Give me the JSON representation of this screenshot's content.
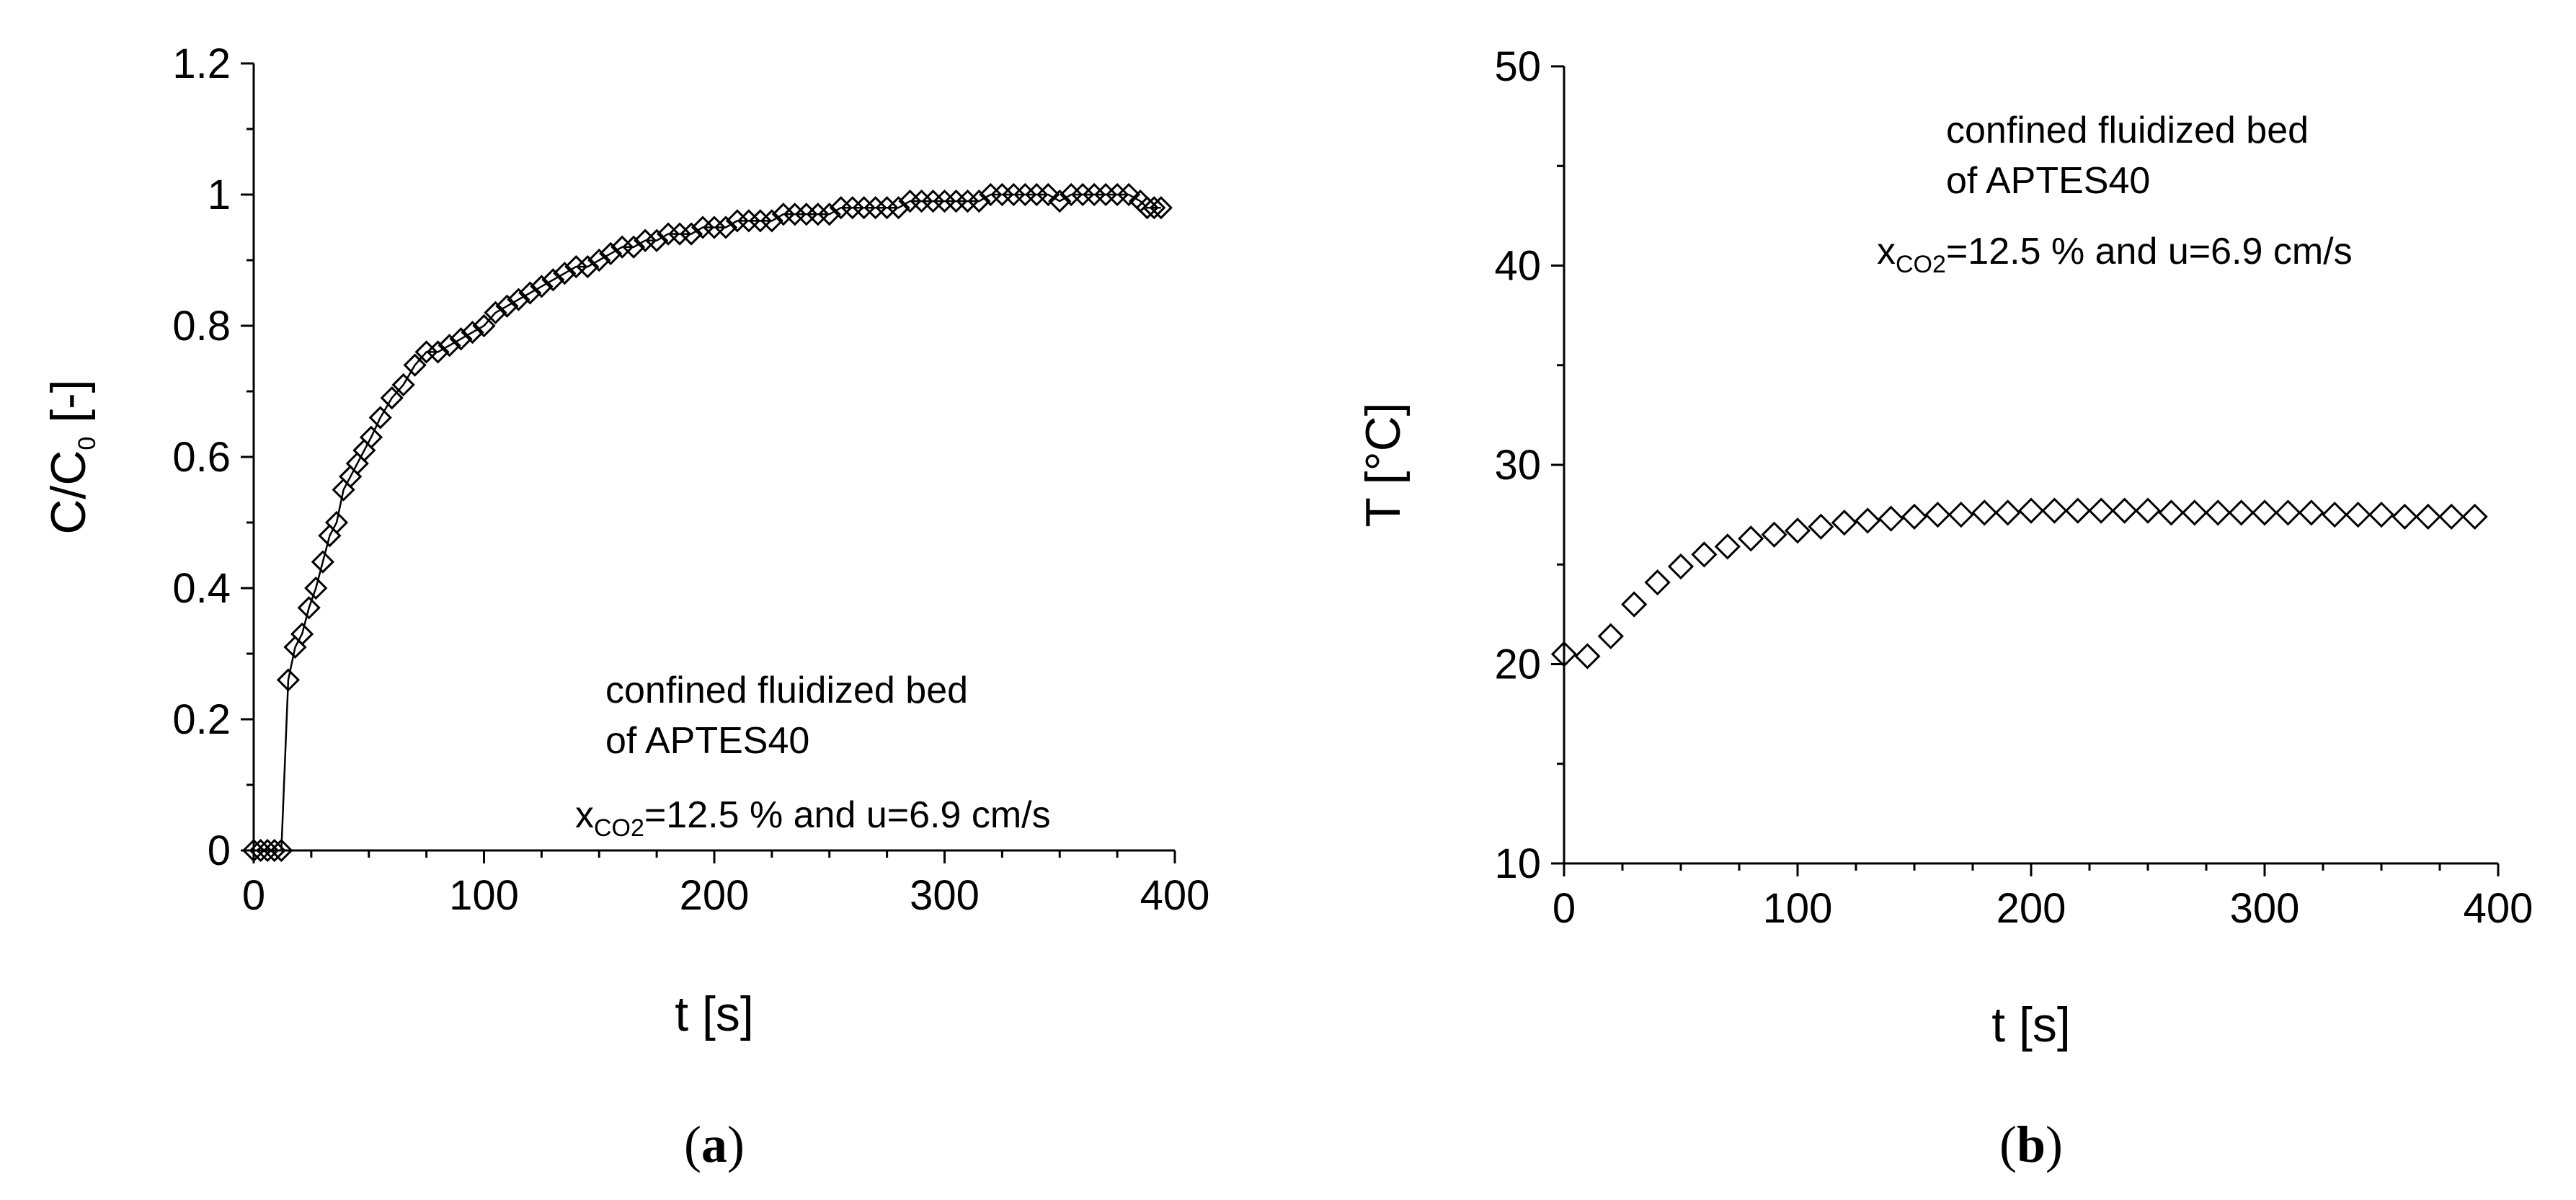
{
  "chart_data": [
    {
      "type": "scatter",
      "panel_label": {
        "open": "(",
        "letter": "a",
        "close": ")"
      },
      "xlabel": "t [s]",
      "ylabel": {
        "main": "C/C",
        "sub": "0",
        "unit": " [-]"
      },
      "xlim": [
        0,
        400
      ],
      "ylim": [
        0,
        1.2
      ],
      "xticks": [
        "0",
        "100",
        "200",
        "300",
        "400"
      ],
      "yticks": [
        "0",
        "0.2",
        "0.4",
        "0.6",
        "0.8",
        "1",
        "1.2"
      ],
      "annotation": {
        "line1": "confined fluidized bed",
        "line2": "of APTES40",
        "x_prefix": "x",
        "x_sub": "CO2",
        "x_rest": "=12.5 % and u=6.9 cm/s"
      },
      "marker": "diamond",
      "connected": true,
      "series": [
        {
          "name": "C/C0",
          "x": [
            0,
            3,
            6,
            9,
            12,
            15,
            18,
            21,
            24,
            27,
            30,
            33,
            36,
            39,
            42,
            45,
            48,
            51,
            55,
            60,
            65,
            70,
            75,
            80,
            85,
            90,
            95,
            100,
            105,
            110,
            115,
            120,
            125,
            130,
            135,
            140,
            145,
            150,
            155,
            160,
            165,
            170,
            175,
            180,
            185,
            190,
            195,
            200,
            205,
            210,
            215,
            220,
            225,
            230,
            235,
            240,
            245,
            250,
            255,
            260,
            265,
            270,
            275,
            280,
            285,
            290,
            295,
            300,
            305,
            310,
            315,
            320,
            325,
            330,
            335,
            340,
            345,
            350,
            355,
            360,
            365,
            370,
            375,
            380,
            385,
            388,
            391,
            394
          ],
          "y": [
            0,
            0,
            0,
            0,
            0,
            0.26,
            0.31,
            0.33,
            0.37,
            0.4,
            0.44,
            0.48,
            0.5,
            0.55,
            0.57,
            0.59,
            0.61,
            0.63,
            0.66,
            0.69,
            0.71,
            0.74,
            0.76,
            0.76,
            0.77,
            0.78,
            0.79,
            0.8,
            0.82,
            0.83,
            0.84,
            0.85,
            0.86,
            0.87,
            0.88,
            0.89,
            0.89,
            0.9,
            0.91,
            0.92,
            0.92,
            0.93,
            0.93,
            0.94,
            0.94,
            0.94,
            0.95,
            0.95,
            0.95,
            0.96,
            0.96,
            0.96,
            0.96,
            0.97,
            0.97,
            0.97,
            0.97,
            0.97,
            0.98,
            0.98,
            0.98,
            0.98,
            0.98,
            0.98,
            0.99,
            0.99,
            0.99,
            0.99,
            0.99,
            0.99,
            0.99,
            1.0,
            1.0,
            1.0,
            1.0,
            1.0,
            1.0,
            0.99,
            1.0,
            1.0,
            1.0,
            1.0,
            1.0,
            1.0,
            0.99,
            0.98,
            0.98,
            0.98
          ]
        }
      ]
    },
    {
      "type": "scatter",
      "panel_label": {
        "open": "(",
        "letter": "b",
        "close": ")"
      },
      "xlabel": "t [s]",
      "ylabel": {
        "main": "T [°C]"
      },
      "xlim": [
        0,
        400
      ],
      "ylim": [
        10,
        50
      ],
      "xticks": [
        "0",
        "100",
        "200",
        "300",
        "400"
      ],
      "yticks": [
        "10",
        "20",
        "30",
        "40",
        "50"
      ],
      "annotation": {
        "line1": "confined fluidized bed",
        "line2": "of APTES40",
        "x_prefix": "x",
        "x_sub": "CO2",
        "x_rest": "=12.5 % and u=6.9 cm/s"
      },
      "marker": "diamond",
      "connected": false,
      "series": [
        {
          "name": "T",
          "x": [
            0,
            10,
            20,
            30,
            40,
            50,
            60,
            70,
            80,
            90,
            100,
            110,
            120,
            130,
            140,
            150,
            160,
            170,
            180,
            190,
            200,
            210,
            220,
            230,
            240,
            250,
            260,
            270,
            280,
            290,
            300,
            310,
            320,
            330,
            340,
            350,
            360,
            370,
            380,
            390
          ],
          "y": [
            20.5,
            20.4,
            21.4,
            23.0,
            24.1,
            24.9,
            25.5,
            25.9,
            26.3,
            26.5,
            26.7,
            26.9,
            27.1,
            27.2,
            27.3,
            27.4,
            27.5,
            27.5,
            27.6,
            27.6,
            27.7,
            27.7,
            27.7,
            27.7,
            27.7,
            27.7,
            27.6,
            27.6,
            27.6,
            27.6,
            27.6,
            27.6,
            27.6,
            27.5,
            27.5,
            27.5,
            27.4,
            27.4,
            27.4,
            27.4
          ]
        }
      ]
    }
  ]
}
